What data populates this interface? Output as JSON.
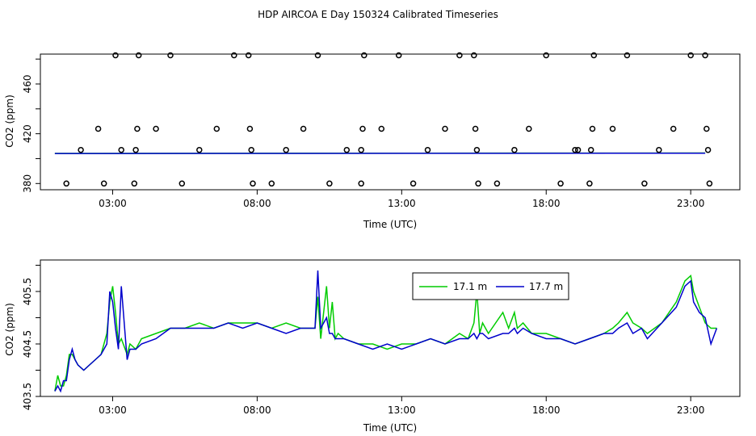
{
  "title": "HDP AIRCOA E  Day 150324  Calibrated Timeseries",
  "chart_data": [
    {
      "type": "scatter",
      "xlabel": "Time (UTC)",
      "ylabel": "CO2 (ppm)",
      "xlim": [
        0.5,
        24.7
      ],
      "ylim": [
        375,
        484
      ],
      "x_ticks": [
        3,
        8,
        13,
        18,
        23
      ],
      "x_tick_labels": [
        "03:00",
        "08:00",
        "13:00",
        "18:00",
        "23:00"
      ],
      "y_ticks": [
        380,
        420,
        460
      ],
      "y_tick_labels": [
        "380",
        "420",
        "460"
      ],
      "y_minor_ticks": [
        400,
        440,
        480
      ],
      "points": [
        [
          1.4,
          380
        ],
        [
          1.9,
          407
        ],
        [
          2.5,
          424
        ],
        [
          3.1,
          483
        ],
        [
          2.7,
          380
        ],
        [
          3.3,
          407
        ],
        [
          3.8,
          407
        ],
        [
          3.85,
          424
        ],
        [
          3.9,
          483
        ],
        [
          3.75,
          380
        ],
        [
          4.5,
          424
        ],
        [
          5.0,
          483
        ],
        [
          5.4,
          380
        ],
        [
          6.0,
          407
        ],
        [
          6.6,
          424
        ],
        [
          7.2,
          483
        ],
        [
          7.7,
          483
        ],
        [
          7.75,
          424
        ],
        [
          7.8,
          407
        ],
        [
          7.85,
          380
        ],
        [
          8.5,
          380
        ],
        [
          9.0,
          407
        ],
        [
          9.6,
          424
        ],
        [
          10.1,
          483
        ],
        [
          10.5,
          380
        ],
        [
          11.1,
          407
        ],
        [
          11.6,
          407
        ],
        [
          11.65,
          424
        ],
        [
          11.7,
          483
        ],
        [
          11.6,
          380
        ],
        [
          12.3,
          424
        ],
        [
          12.9,
          483
        ],
        [
          13.4,
          380
        ],
        [
          13.9,
          407
        ],
        [
          14.5,
          424
        ],
        [
          15.0,
          483
        ],
        [
          15.5,
          483
        ],
        [
          15.55,
          424
        ],
        [
          15.6,
          407
        ],
        [
          15.65,
          380
        ],
        [
          16.3,
          380
        ],
        [
          16.9,
          407
        ],
        [
          17.4,
          424
        ],
        [
          18.0,
          483
        ],
        [
          18.5,
          380
        ],
        [
          19.0,
          407
        ],
        [
          19.1,
          407
        ],
        [
          19.55,
          407
        ],
        [
          19.6,
          424
        ],
        [
          19.65,
          483
        ],
        [
          19.5,
          380
        ],
        [
          20.3,
          424
        ],
        [
          20.8,
          483
        ],
        [
          21.4,
          380
        ],
        [
          21.9,
          407
        ],
        [
          22.4,
          424
        ],
        [
          23.0,
          483
        ],
        [
          23.5,
          483
        ],
        [
          23.55,
          424
        ],
        [
          23.6,
          407
        ],
        [
          23.65,
          380
        ]
      ],
      "series": [
        {
          "name": "17.1 m",
          "color": "#00cc00",
          "x": [
            1.0,
            23.5
          ],
          "values": [
            404.2,
            404.5
          ]
        },
        {
          "name": "17.7 m",
          "color": "#0000cc",
          "x": [
            1.0,
            23.5
          ],
          "values": [
            404.1,
            404.4
          ]
        }
      ]
    },
    {
      "type": "line",
      "xlabel": "Time (UTC)",
      "ylabel": "CO2 (ppm)",
      "xlim": [
        0.5,
        24.7
      ],
      "ylim": [
        403.5,
        406.1
      ],
      "x_ticks": [
        3,
        8,
        13,
        18,
        23
      ],
      "x_tick_labels": [
        "03:00",
        "08:00",
        "13:00",
        "18:00",
        "23:00"
      ],
      "y_ticks": [
        403.5,
        404.5,
        405.5
      ],
      "y_tick_labels": [
        "403.5",
        "404.5",
        "405.5"
      ],
      "y_minor_ticks": [
        404.0,
        405.0,
        406.0
      ],
      "legend_position": "top-right",
      "series": [
        {
          "name": "17.1 m",
          "color": "#00cc00",
          "x": [
            1.0,
            1.1,
            1.2,
            1.3,
            1.4,
            1.5,
            1.6,
            1.7,
            1.8,
            2.0,
            2.2,
            2.4,
            2.6,
            2.8,
            2.9,
            3.0,
            3.1,
            3.2,
            3.3,
            3.5,
            3.6,
            3.8,
            4.0,
            4.5,
            5.0,
            5.5,
            6.0,
            6.5,
            7.0,
            7.5,
            8.0,
            8.5,
            9.0,
            9.5,
            10.0,
            10.1,
            10.2,
            10.3,
            10.4,
            10.5,
            10.6,
            10.7,
            10.8,
            11.0,
            11.5,
            12.0,
            12.5,
            13.0,
            13.5,
            14.0,
            14.5,
            15.0,
            15.3,
            15.5,
            15.6,
            15.7,
            15.8,
            16.0,
            16.5,
            16.7,
            16.9,
            17.0,
            17.2,
            17.5,
            18.0,
            18.5,
            19.0,
            19.5,
            20.0,
            20.3,
            20.5,
            20.8,
            21.0,
            21.3,
            21.5,
            22.0,
            22.5,
            22.8,
            23.0,
            23.1,
            23.3,
            23.5,
            23.7,
            23.9
          ],
          "values": [
            403.6,
            403.9,
            403.7,
            403.7,
            403.9,
            404.3,
            404.3,
            404.2,
            404.1,
            404.0,
            404.1,
            404.2,
            404.3,
            404.7,
            405.3,
            405.6,
            405.1,
            404.5,
            404.6,
            404.3,
            404.5,
            404.4,
            404.6,
            404.7,
            404.8,
            404.8,
            404.9,
            404.8,
            404.9,
            404.9,
            404.9,
            404.8,
            404.9,
            404.8,
            404.8,
            405.4,
            404.6,
            405.1,
            405.6,
            404.8,
            405.3,
            404.6,
            404.7,
            404.6,
            404.5,
            404.5,
            404.4,
            404.5,
            404.5,
            404.6,
            404.5,
            404.7,
            404.6,
            404.9,
            405.5,
            404.7,
            404.9,
            404.7,
            405.1,
            404.8,
            405.1,
            404.8,
            404.9,
            404.7,
            404.7,
            404.6,
            404.5,
            404.6,
            404.7,
            404.8,
            404.9,
            405.1,
            404.9,
            404.8,
            404.7,
            404.9,
            405.3,
            405.7,
            405.8,
            405.5,
            405.2,
            404.9,
            404.8,
            404.8
          ]
        },
        {
          "name": "17.7 m",
          "color": "#0000cc",
          "x": [
            1.0,
            1.1,
            1.2,
            1.3,
            1.4,
            1.5,
            1.6,
            1.7,
            1.8,
            2.0,
            2.2,
            2.4,
            2.6,
            2.8,
            2.9,
            3.0,
            3.1,
            3.2,
            3.3,
            3.5,
            3.6,
            3.8,
            4.0,
            4.5,
            5.0,
            5.5,
            6.0,
            6.5,
            7.0,
            7.5,
            8.0,
            8.5,
            9.0,
            9.5,
            10.0,
            10.1,
            10.2,
            10.3,
            10.4,
            10.5,
            10.6,
            10.7,
            10.8,
            11.0,
            11.5,
            12.0,
            12.5,
            13.0,
            13.5,
            14.0,
            14.5,
            15.0,
            15.3,
            15.5,
            15.6,
            15.7,
            15.8,
            16.0,
            16.5,
            16.7,
            16.9,
            17.0,
            17.2,
            17.5,
            18.0,
            18.5,
            19.0,
            19.5,
            20.0,
            20.3,
            20.5,
            20.8,
            21.0,
            21.3,
            21.5,
            22.0,
            22.5,
            22.8,
            23.0,
            23.1,
            23.3,
            23.5,
            23.7,
            23.9
          ],
          "values": [
            403.6,
            403.7,
            403.6,
            403.8,
            403.8,
            404.2,
            404.4,
            404.2,
            404.1,
            404.0,
            404.1,
            404.2,
            404.3,
            404.5,
            405.5,
            405.3,
            404.8,
            404.4,
            405.6,
            404.2,
            404.4,
            404.4,
            404.5,
            404.6,
            404.8,
            404.8,
            404.8,
            404.8,
            404.9,
            404.8,
            404.9,
            404.8,
            404.7,
            404.8,
            404.8,
            405.9,
            404.8,
            404.9,
            405.0,
            404.7,
            404.7,
            404.6,
            404.6,
            404.6,
            404.5,
            404.4,
            404.5,
            404.4,
            404.5,
            404.6,
            404.5,
            404.6,
            404.6,
            404.7,
            404.6,
            404.7,
            404.7,
            404.6,
            404.7,
            404.7,
            404.8,
            404.7,
            404.8,
            404.7,
            404.6,
            404.6,
            404.5,
            404.6,
            404.7,
            404.7,
            404.8,
            404.9,
            404.7,
            404.8,
            404.6,
            404.9,
            405.2,
            405.6,
            405.7,
            405.3,
            405.1,
            405.0,
            404.5,
            404.8
          ]
        }
      ]
    }
  ]
}
